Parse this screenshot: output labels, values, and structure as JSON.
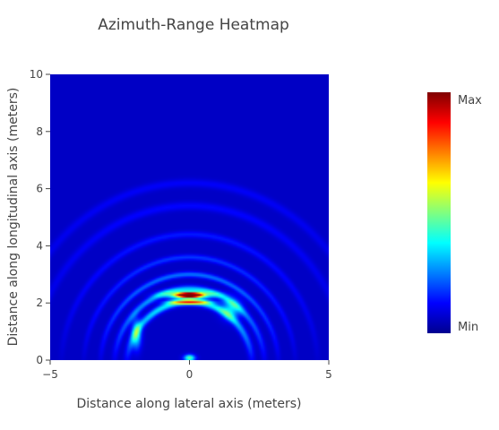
{
  "chart_data": {
    "type": "heatmap",
    "title": "Azimuth-Range Heatmap",
    "xlabel": "Distance along lateral axis (meters)",
    "ylabel": "Distance along longitudinal axis (meters)",
    "xlim": [
      -5,
      5
    ],
    "ylim": [
      0,
      10
    ],
    "x_ticks": [
      -5,
      0,
      5
    ],
    "y_ticks": [
      0,
      2,
      4,
      6,
      8,
      10
    ],
    "colorscale": "jet",
    "colorbar": {
      "max_label": "Max",
      "min_label": "Min"
    },
    "colorscale_stops": [
      [
        0.0,
        "#00008f"
      ],
      [
        0.125,
        "#0000ff"
      ],
      [
        0.375,
        "#00ffff"
      ],
      [
        0.625,
        "#ffff00"
      ],
      [
        0.875,
        "#ff0000"
      ],
      [
        1.0,
        "#800000"
      ]
    ],
    "background_level": 0.06,
    "features": [
      {
        "kind": "blob",
        "x": 0.0,
        "y": 2.28,
        "intensity": 1.0,
        "sx": 0.28,
        "sy": 0.05
      },
      {
        "kind": "blob",
        "x": 0.0,
        "y": 2.28,
        "intensity": 0.55,
        "sx": 0.6,
        "sy": 0.09
      },
      {
        "kind": "blob",
        "x": 0.0,
        "y": 2.02,
        "intensity": 0.5,
        "sx": 0.5,
        "sy": 0.05
      },
      {
        "kind": "blob",
        "x": 0.0,
        "y": 0.08,
        "intensity": 0.42,
        "sx": 0.14,
        "sy": 0.08
      },
      {
        "kind": "blob",
        "x": -1.9,
        "y": 0.9,
        "intensity": 0.32,
        "sx": 0.12,
        "sy": 0.35
      },
      {
        "kind": "blob",
        "x": 1.5,
        "y": 1.8,
        "intensity": 0.28,
        "sx": 0.25,
        "sy": 0.25
      },
      {
        "kind": "ring",
        "cx": 0.0,
        "cy": -0.2,
        "r": 2.25,
        "intensity": 0.32,
        "width": 0.09
      },
      {
        "kind": "ring",
        "cx": 0.0,
        "cy": -0.2,
        "r": 2.7,
        "intensity": 0.24,
        "width": 0.08
      },
      {
        "kind": "ring",
        "cx": 0.0,
        "cy": -0.2,
        "r": 3.2,
        "intensity": 0.18,
        "width": 0.07
      },
      {
        "kind": "ring",
        "cx": 0.0,
        "cy": -0.2,
        "r": 3.8,
        "intensity": 0.12,
        "width": 0.07
      },
      {
        "kind": "ring",
        "cx": 0.0,
        "cy": -0.2,
        "r": 4.6,
        "intensity": 0.09,
        "width": 0.08
      },
      {
        "kind": "ring",
        "cx": 0.0,
        "cy": -0.2,
        "r": 5.6,
        "intensity": 0.07,
        "width": 0.1
      },
      {
        "kind": "ring",
        "cx": 0.0,
        "cy": -0.2,
        "r": 6.4,
        "intensity": 0.06,
        "width": 0.1
      }
    ]
  }
}
